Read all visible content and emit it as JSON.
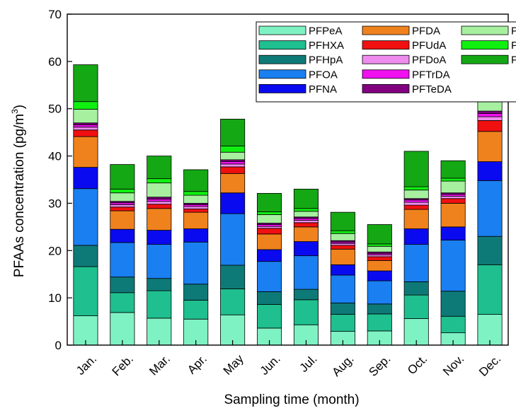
{
  "chart_data": {
    "type": "bar",
    "stacked": true,
    "xlabel": "Sampling time (month)",
    "ylabel": "PFAAs concentration (pg/m³)",
    "ylabel_main": "PFAAs concentration (pg/m",
    "ylabel_sup": "3",
    "ylabel_close": ")",
    "ylim": [
      0,
      70
    ],
    "yticks": [
      0,
      10,
      20,
      30,
      40,
      50,
      60,
      70
    ],
    "categories": [
      "Jan.",
      "Feb.",
      "Mar.",
      "Apr.",
      "May",
      "Jun.",
      "Jul.",
      "Aug.",
      "Sep.",
      "Oct.",
      "Nov.",
      "Dec."
    ],
    "legend_position": "top-right",
    "legend_columns": 3,
    "series": [
      {
        "name": "PFPeA",
        "color": "#7ff2c4",
        "values": [
          6.2,
          6.9,
          5.7,
          5.5,
          6.4,
          3.6,
          4.3,
          2.9,
          3.0,
          5.6,
          2.6,
          6.5
        ]
      },
      {
        "name": "PFHXA",
        "color": "#1fbf8f",
        "values": [
          10.4,
          4.2,
          5.8,
          4.0,
          5.5,
          5.0,
          5.3,
          3.6,
          3.6,
          5.0,
          3.5,
          10.5
        ]
      },
      {
        "name": "PFHpA",
        "color": "#0e7a78",
        "values": [
          4.5,
          3.3,
          2.6,
          3.4,
          5.0,
          2.7,
          2.2,
          2.4,
          2.1,
          2.8,
          5.3,
          6.0
        ]
      },
      {
        "name": "PFOA",
        "color": "#1a7ff0",
        "values": [
          12.0,
          7.3,
          7.2,
          8.9,
          10.9,
          6.4,
          7.1,
          5.9,
          4.9,
          7.9,
          10.8,
          11.8
        ]
      },
      {
        "name": "PFNA",
        "color": "#0a0af0",
        "values": [
          4.5,
          2.8,
          3.0,
          2.8,
          4.4,
          2.5,
          3.0,
          2.2,
          2.1,
          3.3,
          2.8,
          4.0
        ]
      },
      {
        "name": "PFDA",
        "color": "#f0821e",
        "values": [
          6.5,
          3.9,
          4.6,
          3.5,
          4.1,
          3.3,
          3.1,
          3.3,
          2.2,
          4.1,
          5.0,
          6.4
        ]
      },
      {
        "name": "PFUdA",
        "color": "#f01010",
        "values": [
          1.4,
          0.8,
          0.9,
          0.7,
          1.4,
          1.2,
          0.9,
          0.8,
          0.8,
          0.9,
          1.0,
          2.3
        ]
      },
      {
        "name": "PFDoA",
        "color": "#ee8cee",
        "values": [
          0.6,
          0.5,
          0.6,
          0.5,
          0.6,
          0.4,
          0.5,
          0.4,
          0.4,
          0.6,
          0.5,
          0.8
        ]
      },
      {
        "name": "PFTrDA",
        "color": "#f010f0",
        "values": [
          0.5,
          0.4,
          0.5,
          0.4,
          0.5,
          0.4,
          0.4,
          0.3,
          0.3,
          0.5,
          0.4,
          0.7
        ]
      },
      {
        "name": "PFTeDA",
        "color": "#800080",
        "values": [
          0.4,
          0.3,
          0.4,
          0.3,
          0.4,
          0.3,
          0.3,
          0.3,
          0.3,
          0.3,
          0.3,
          0.5
        ]
      },
      {
        "name": "PFBS",
        "color": "#a6f0a0",
        "values": [
          2.9,
          1.8,
          3.0,
          1.7,
          1.6,
          1.8,
          1.2,
          1.5,
          1.2,
          1.8,
          2.5,
          2.6
        ]
      },
      {
        "name": "PFHxS",
        "color": "#10f010",
        "values": [
          1.6,
          0.8,
          0.9,
          0.8,
          1.3,
          0.6,
          0.6,
          0.6,
          0.5,
          0.7,
          0.6,
          1.8
        ]
      },
      {
        "name": "PFOS",
        "color": "#14a814",
        "values": [
          7.8,
          5.2,
          4.8,
          4.6,
          5.7,
          3.9,
          4.1,
          3.9,
          4.1,
          7.5,
          3.7,
          6.3
        ]
      }
    ]
  }
}
